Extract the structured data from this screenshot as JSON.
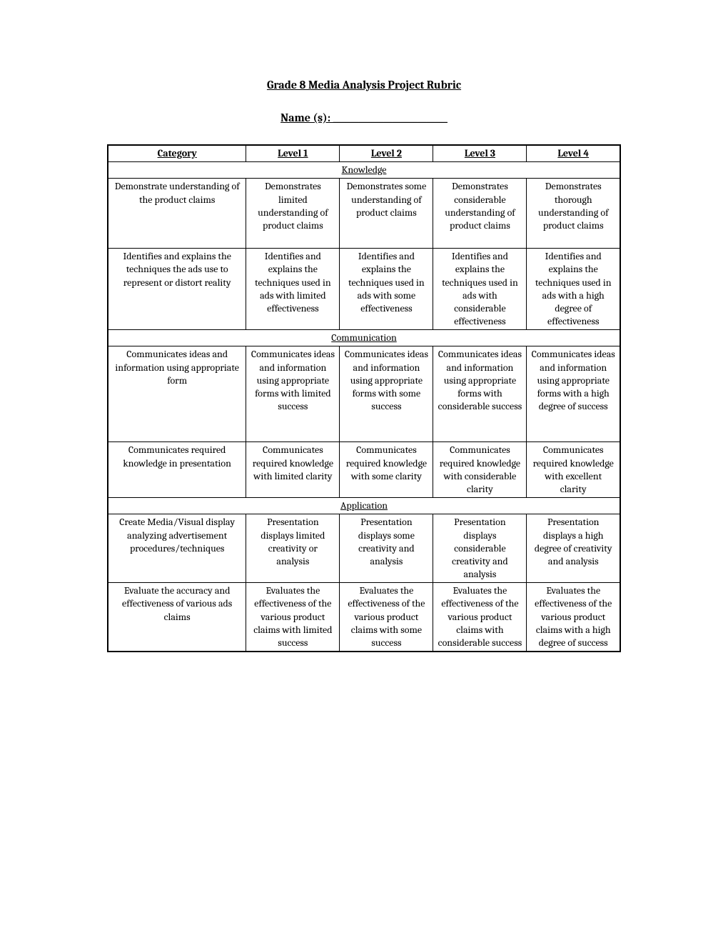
{
  "title": "Grade 8 Media Analysis Project Rubric",
  "nameLabel": "Name (s): ___________________________",
  "headers": {
    "category": "Category",
    "level1": "Level 1",
    "level2": "Level 2",
    "level3": "Level 3",
    "level4": "Level 4"
  },
  "sections": {
    "knowledge": "Knowledge",
    "communication": "Communication",
    "application": "Application"
  },
  "rows": {
    "k1": {
      "cat": "Demonstrate understanding of the product claims",
      "l1": "Demonstrates limited understanding of product claims",
      "l2": "Demonstrates some understanding of product claims",
      "l3": "Demonstrates considerable understanding of product claims",
      "l4": "Demonstrates thorough understanding of product claims"
    },
    "k2": {
      "cat": "Identifies and explains the techniques the ads use to represent or distort reality",
      "l1": "Identifies and explains the techniques used in ads with limited effectiveness",
      "l2": "Identifies and explains the techniques used in ads with some effectiveness",
      "l3": "Identifies and explains the techniques used in ads with considerable effectiveness",
      "l4": "Identifies and explains the techniques used in ads with a high degree of effectiveness"
    },
    "c1": {
      "cat": "Communicates ideas and information using appropriate form",
      "l1": "Communicates ideas and information using appropriate forms with limited success",
      "l2": "Communicates ideas and information using appropriate forms with some success",
      "l3": "Communicates ideas and information using appropriate forms with considerable success",
      "l4": "Communicates ideas and information using appropriate forms with a high degree of success"
    },
    "c2": {
      "cat": "Communicates required knowledge in presentation",
      "l1": "Communicates required knowledge with limited clarity",
      "l2": "Communicates required knowledge with some clarity",
      "l3": "Communicates required knowledge with considerable clarity",
      "l4": "Communicates required knowledge with excellent clarity"
    },
    "a1": {
      "cat": "Create Media/Visual display analyzing advertisement procedures/techniques",
      "l1": "Presentation displays limited creativity or analysis",
      "l2": "Presentation displays some creativity and analysis",
      "l3": "Presentation displays considerable creativity and analysis",
      "l4": "Presentation displays a high degree of creativity and analysis"
    },
    "a2": {
      "cat": "Evaluate the accuracy and effectiveness of various ads claims",
      "l1": "Evaluates the effectiveness of the various product claims with limited success",
      "l2": "Evaluates the effectiveness of the various product claims with some success",
      "l3": "Evaluates the effectiveness of the various product claims with considerable success",
      "l4": "Evaluates the effectiveness of the various product claims with a high degree of success"
    }
  }
}
